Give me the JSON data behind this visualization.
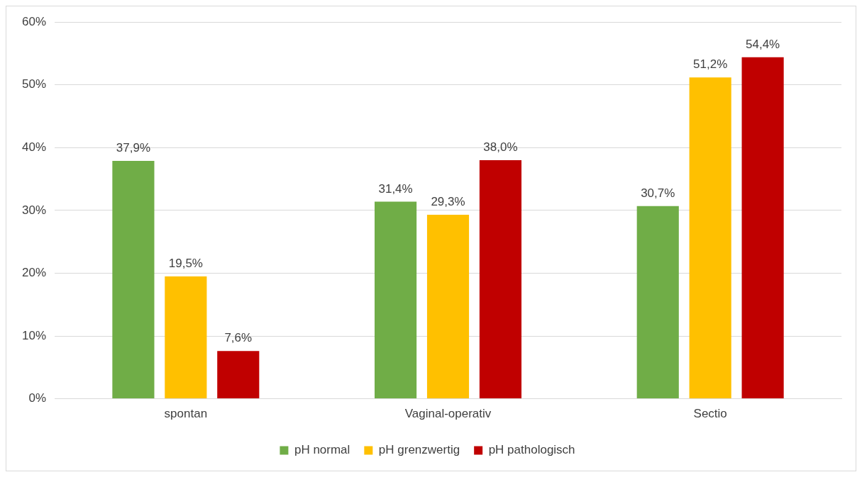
{
  "chart_data": {
    "type": "bar",
    "categories": [
      "spontan",
      "Vaginal-operativ",
      "Sectio"
    ],
    "series": [
      {
        "name": "pH normal",
        "color": "#70ad47",
        "values": [
          37.9,
          31.4,
          30.7
        ],
        "value_labels": [
          "37,9%",
          "31,4%",
          "30,7%"
        ]
      },
      {
        "name": "pH grenzwertig",
        "color": "#ffc000",
        "values": [
          19.5,
          29.3,
          51.2
        ],
        "value_labels": [
          "19,5%",
          "29,3%",
          "51,2%"
        ]
      },
      {
        "name": "pH pathologisch",
        "color": "#c00000",
        "values": [
          7.6,
          38.0,
          54.4
        ],
        "value_labels": [
          "7,6%",
          "38,0%",
          "54,4%"
        ]
      }
    ],
    "ylim": [
      0,
      60
    ],
    "yticks": [
      {
        "value": 0,
        "label": "0%"
      },
      {
        "value": 10,
        "label": "10%"
      },
      {
        "value": 20,
        "label": "20%"
      },
      {
        "value": 30,
        "label": "30%"
      },
      {
        "value": 40,
        "label": "40%"
      },
      {
        "value": 50,
        "label": "50%"
      },
      {
        "value": 60,
        "label": "60%"
      }
    ],
    "grid": "y",
    "legend": "bottom"
  }
}
